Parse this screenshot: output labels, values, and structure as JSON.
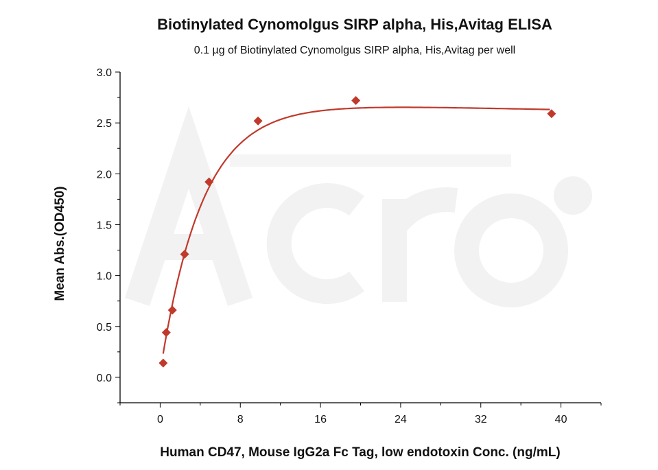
{
  "chart_data": {
    "type": "scatter",
    "title": "Biotinylated Cynomolgus SIRP alpha, His,Avitag ELISA",
    "subtitle": "0.1 µg of Biotinylated Cynomolgus SIRP alpha, His,Avitag per well",
    "xlabel": "Human CD47, Mouse IgG2a Fc Tag, low endotoxin Conc. (ng/mL)",
    "ylabel": "Mean Abs.(OD450)",
    "xlim": [
      -4,
      44
    ],
    "ylim": [
      -0.25,
      3.0
    ],
    "xticks": [
      "0",
      "8",
      "16",
      "24",
      "32",
      "40"
    ],
    "xtick_values": [
      0,
      8,
      16,
      24,
      32,
      40
    ],
    "yticks": [
      "0.0",
      "0.5",
      "1.0",
      "1.5",
      "2.0",
      "2.5",
      "3.0"
    ],
    "ytick_values": [
      0,
      0.5,
      1.0,
      1.5,
      2.0,
      2.5,
      3.0
    ],
    "grid": false,
    "watermark": "ACRO BIOSYSTEMS",
    "series": [
      {
        "name": "data",
        "color": "#c0392b",
        "marker": "diamond",
        "x": [
          0.305,
          0.61,
          1.22,
          2.44,
          4.88,
          9.77,
          19.53,
          39.06
        ],
        "y": [
          0.14,
          0.44,
          0.66,
          1.21,
          1.92,
          2.52,
          2.72,
          2.59
        ]
      }
    ],
    "fit": {
      "color": "#c0392b",
      "type": "smooth fit curve"
    }
  }
}
